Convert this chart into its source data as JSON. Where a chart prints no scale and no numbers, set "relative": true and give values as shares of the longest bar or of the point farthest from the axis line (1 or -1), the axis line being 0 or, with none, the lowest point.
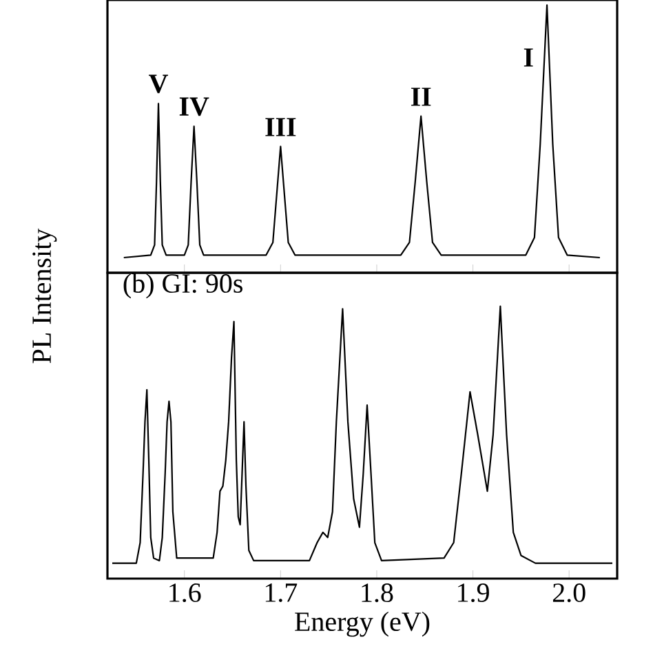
{
  "chart_data": [
    {
      "type": "line",
      "relative": true,
      "color": "#000000",
      "ylabel": "PL Intensity",
      "xlim": [
        1.52,
        2.05
      ],
      "xticks": [
        1.6,
        1.7,
        1.8,
        1.9,
        2.0
      ],
      "tick_labels": false,
      "x": [
        1.537,
        1.565,
        1.569,
        1.571,
        1.573,
        1.575,
        1.577,
        1.581,
        1.6,
        1.604,
        1.607,
        1.61,
        1.613,
        1.616,
        1.62,
        1.685,
        1.692,
        1.696,
        1.7,
        1.704,
        1.708,
        1.715,
        1.825,
        1.834,
        1.84,
        1.846,
        1.852,
        1.858,
        1.867,
        1.955,
        1.964,
        1.97,
        1.977,
        1.983,
        1.989,
        1.998,
        2.032
      ],
      "values": [
        0,
        0.01,
        0.05,
        0.3,
        0.61,
        0.3,
        0.05,
        0.01,
        0.01,
        0.05,
        0.3,
        0.52,
        0.3,
        0.05,
        0.01,
        0.01,
        0.06,
        0.25,
        0.44,
        0.25,
        0.06,
        0.01,
        0.01,
        0.06,
        0.3,
        0.56,
        0.3,
        0.06,
        0.01,
        0.01,
        0.08,
        0.45,
        1.0,
        0.45,
        0.08,
        0.01,
        0
      ],
      "annotations": [
        {
          "text": "V",
          "x": 1.573,
          "y": 0.61
        },
        {
          "text": "IV",
          "x": 1.61,
          "y": 0.52
        },
        {
          "text": "III",
          "x": 1.7,
          "y": 0.44
        },
        {
          "text": "II",
          "x": 1.846,
          "y": 0.56
        },
        {
          "text": "I",
          "x": 1.977,
          "y": 1.0
        }
      ]
    },
    {
      "type": "line",
      "relative": true,
      "color": "#000000",
      "title": "(b) GI: 90s",
      "xlabel": "Energy (eV)",
      "xlim": [
        1.52,
        2.05
      ],
      "xticks": [
        1.6,
        1.7,
        1.8,
        1.9,
        {
          "value": 2.0,
          "label": "2.0"
        }
      ],
      "x": [
        1.525,
        1.55,
        1.554,
        1.557,
        1.559,
        1.561,
        1.563,
        1.565,
        1.568,
        1.574,
        1.577,
        1.58,
        1.582,
        1.584,
        1.586,
        1.588,
        1.592,
        1.63,
        1.634,
        1.637,
        1.64,
        1.643,
        1.646,
        1.649,
        1.6515,
        1.654,
        1.656,
        1.658,
        1.66,
        1.662,
        1.664,
        1.667,
        1.672,
        1.73,
        1.738,
        1.744,
        1.749,
        1.754,
        1.758,
        1.7645,
        1.77,
        1.776,
        1.782,
        1.786,
        1.79,
        1.794,
        1.798,
        1.805,
        1.87,
        1.88,
        1.888,
        1.897,
        1.905,
        1.915,
        1.921,
        1.9285,
        1.935,
        1.942,
        1.95,
        1.965,
        2.045
      ],
      "values": [
        0,
        0,
        0.08,
        0.35,
        0.55,
        0.675,
        0.4,
        0.1,
        0.02,
        0.01,
        0.1,
        0.35,
        0.55,
        0.63,
        0.55,
        0.2,
        0.02,
        0.02,
        0.12,
        0.28,
        0.3,
        0.4,
        0.55,
        0.8,
        0.94,
        0.4,
        0.18,
        0.15,
        0.35,
        0.55,
        0.3,
        0.05,
        0.01,
        0.01,
        0.08,
        0.12,
        0.1,
        0.2,
        0.55,
        0.99,
        0.55,
        0.25,
        0.14,
        0.35,
        0.615,
        0.35,
        0.08,
        0.01,
        0.02,
        0.08,
        0.35,
        0.667,
        0.5,
        0.28,
        0.5,
        1.0,
        0.5,
        0.12,
        0.03,
        0,
        0
      ]
    }
  ]
}
